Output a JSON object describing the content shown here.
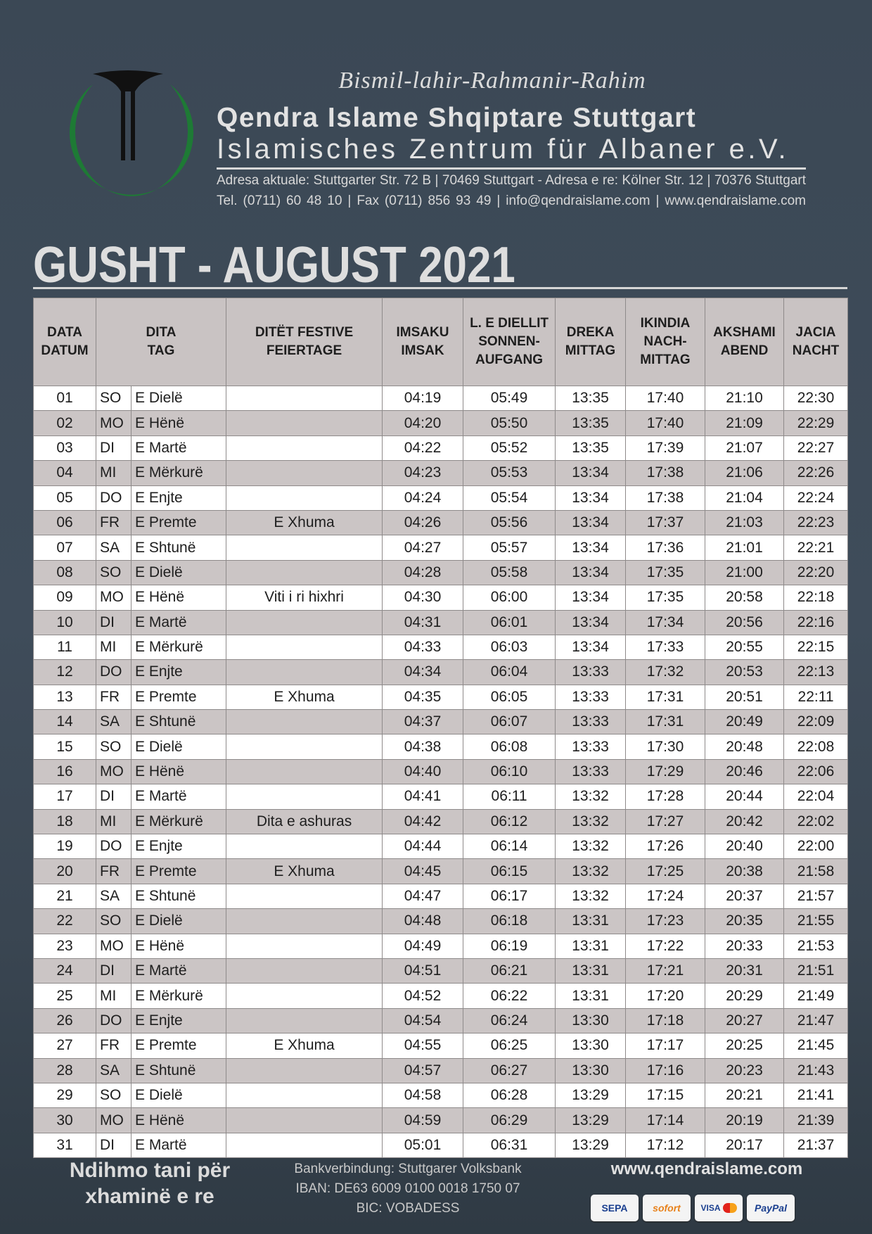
{
  "header": {
    "bismillah": "Bismil-lahir-Rahmanir-Rahim",
    "org_name_sq": "Qendra Islame Shqiptare Stuttgart",
    "org_name_de": "Islamisches Zentrum für Albaner e.V.",
    "address": "Adresa aktuale: Stuttgarter Str.  72 B | 70469 Stuttgart - Adresa e re: Kölner Str. 12 | 70376 Stuttgart",
    "contact": "Tel. (0711) 60 48 10 | Fax (0711) 856 93 49 | info@qendraislame.com | www.qendraislame.com",
    "logo_colors": {
      "crescent": "#1e7a35",
      "pillar": "#111111"
    }
  },
  "title": "GUSHT - AUGUST 2021",
  "table": {
    "columns": [
      "DATA\nDATUM",
      "DITA\nTAG",
      "DITËT FESTIVE\nFEIERTAGE",
      "IMSAKU\nIMSAK",
      "L. E DIELLIT\nSONNEN-\nAUFGANG",
      "DREKA\nMITTAG",
      "IKINDIA\nNACH-\nMITTAG",
      "AKSHAMI\nABEND",
      "JACIA\nNACHT"
    ],
    "rows": [
      [
        "01",
        "SO",
        "E Dielë",
        "",
        "04:19",
        "05:49",
        "13:35",
        "17:40",
        "21:10",
        "22:30"
      ],
      [
        "02",
        "MO",
        "E Hënë",
        "",
        "04:20",
        "05:50",
        "13:35",
        "17:40",
        "21:09",
        "22:29"
      ],
      [
        "03",
        "DI",
        "E Martë",
        "",
        "04:22",
        "05:52",
        "13:35",
        "17:39",
        "21:07",
        "22:27"
      ],
      [
        "04",
        "MI",
        "E Mërkurë",
        "",
        "04:23",
        "05:53",
        "13:34",
        "17:38",
        "21:06",
        "22:26"
      ],
      [
        "05",
        "DO",
        "E Enjte",
        "",
        "04:24",
        "05:54",
        "13:34",
        "17:38",
        "21:04",
        "22:24"
      ],
      [
        "06",
        "FR",
        "E Premte",
        "E Xhuma",
        "04:26",
        "05:56",
        "13:34",
        "17:37",
        "21:03",
        "22:23"
      ],
      [
        "07",
        "SA",
        "E Shtunë",
        "",
        "04:27",
        "05:57",
        "13:34",
        "17:36",
        "21:01",
        "22:21"
      ],
      [
        "08",
        "SO",
        "E Dielë",
        "",
        "04:28",
        "05:58",
        "13:34",
        "17:35",
        "21:00",
        "22:20"
      ],
      [
        "09",
        "MO",
        "E Hënë",
        "Viti i ri hixhri",
        "04:30",
        "06:00",
        "13:34",
        "17:35",
        "20:58",
        "22:18"
      ],
      [
        "10",
        "DI",
        "E Martë",
        "",
        "04:31",
        "06:01",
        "13:34",
        "17:34",
        "20:56",
        "22:16"
      ],
      [
        "11",
        "MI",
        "E Mërkurë",
        "",
        "04:33",
        "06:03",
        "13:34",
        "17:33",
        "20:55",
        "22:15"
      ],
      [
        "12",
        "DO",
        "E Enjte",
        "",
        "04:34",
        "06:04",
        "13:33",
        "17:32",
        "20:53",
        "22:13"
      ],
      [
        "13",
        "FR",
        "E Premte",
        "E Xhuma",
        "04:35",
        "06:05",
        "13:33",
        "17:31",
        "20:51",
        "22:11"
      ],
      [
        "14",
        "SA",
        "E Shtunë",
        "",
        "04:37",
        "06:07",
        "13:33",
        "17:31",
        "20:49",
        "22:09"
      ],
      [
        "15",
        "SO",
        "E Dielë",
        "",
        "04:38",
        "06:08",
        "13:33",
        "17:30",
        "20:48",
        "22:08"
      ],
      [
        "16",
        "MO",
        "E Hënë",
        "",
        "04:40",
        "06:10",
        "13:33",
        "17:29",
        "20:46",
        "22:06"
      ],
      [
        "17",
        "DI",
        "E Martë",
        "",
        "04:41",
        "06:11",
        "13:32",
        "17:28",
        "20:44",
        "22:04"
      ],
      [
        "18",
        "MI",
        "E Mërkurë",
        "Dita e ashuras",
        "04:42",
        "06:12",
        "13:32",
        "17:27",
        "20:42",
        "22:02"
      ],
      [
        "19",
        "DO",
        "E Enjte",
        "",
        "04:44",
        "06:14",
        "13:32",
        "17:26",
        "20:40",
        "22:00"
      ],
      [
        "20",
        "FR",
        "E Premte",
        "E Xhuma",
        "04:45",
        "06:15",
        "13:32",
        "17:25",
        "20:38",
        "21:58"
      ],
      [
        "21",
        "SA",
        "E Shtunë",
        "",
        "04:47",
        "06:17",
        "13:32",
        "17:24",
        "20:37",
        "21:57"
      ],
      [
        "22",
        "SO",
        "E Dielë",
        "",
        "04:48",
        "06:18",
        "13:31",
        "17:23",
        "20:35",
        "21:55"
      ],
      [
        "23",
        "MO",
        "E Hënë",
        "",
        "04:49",
        "06:19",
        "13:31",
        "17:22",
        "20:33",
        "21:53"
      ],
      [
        "24",
        "DI",
        "E Martë",
        "",
        "04:51",
        "06:21",
        "13:31",
        "17:21",
        "20:31",
        "21:51"
      ],
      [
        "25",
        "MI",
        "E Mërkurë",
        "",
        "04:52",
        "06:22",
        "13:31",
        "17:20",
        "20:29",
        "21:49"
      ],
      [
        "26",
        "DO",
        "E Enjte",
        "",
        "04:54",
        "06:24",
        "13:30",
        "17:18",
        "20:27",
        "21:47"
      ],
      [
        "27",
        "FR",
        "E Premte",
        "E Xhuma",
        "04:55",
        "06:25",
        "13:30",
        "17:17",
        "20:25",
        "21:45"
      ],
      [
        "28",
        "SA",
        "E Shtunë",
        "",
        "04:57",
        "06:27",
        "13:30",
        "17:16",
        "20:23",
        "21:43"
      ],
      [
        "29",
        "SO",
        "E Dielë",
        "",
        "04:58",
        "06:28",
        "13:29",
        "17:15",
        "20:21",
        "21:41"
      ],
      [
        "30",
        "MO",
        "E Hënë",
        "",
        "04:59",
        "06:29",
        "13:29",
        "17:14",
        "20:19",
        "21:39"
      ],
      [
        "31",
        "DI",
        "E Martë",
        "",
        "05:01",
        "06:31",
        "13:29",
        "17:12",
        "20:17",
        "21:37"
      ]
    ]
  },
  "footer": {
    "appeal_line1": "Ndihmo tani për",
    "appeal_line2": "xhaminë e re",
    "bank": "Bankverbindung: Stuttgarer Volksbank",
    "iban": "IBAN: DE63 6009 0100 0018 1750 07",
    "bic": "BIC: VOBADESS",
    "website": "www.qendraislame.com",
    "payment_methods": [
      "SEPA",
      "sofort",
      "VISA",
      "PayPal"
    ]
  }
}
